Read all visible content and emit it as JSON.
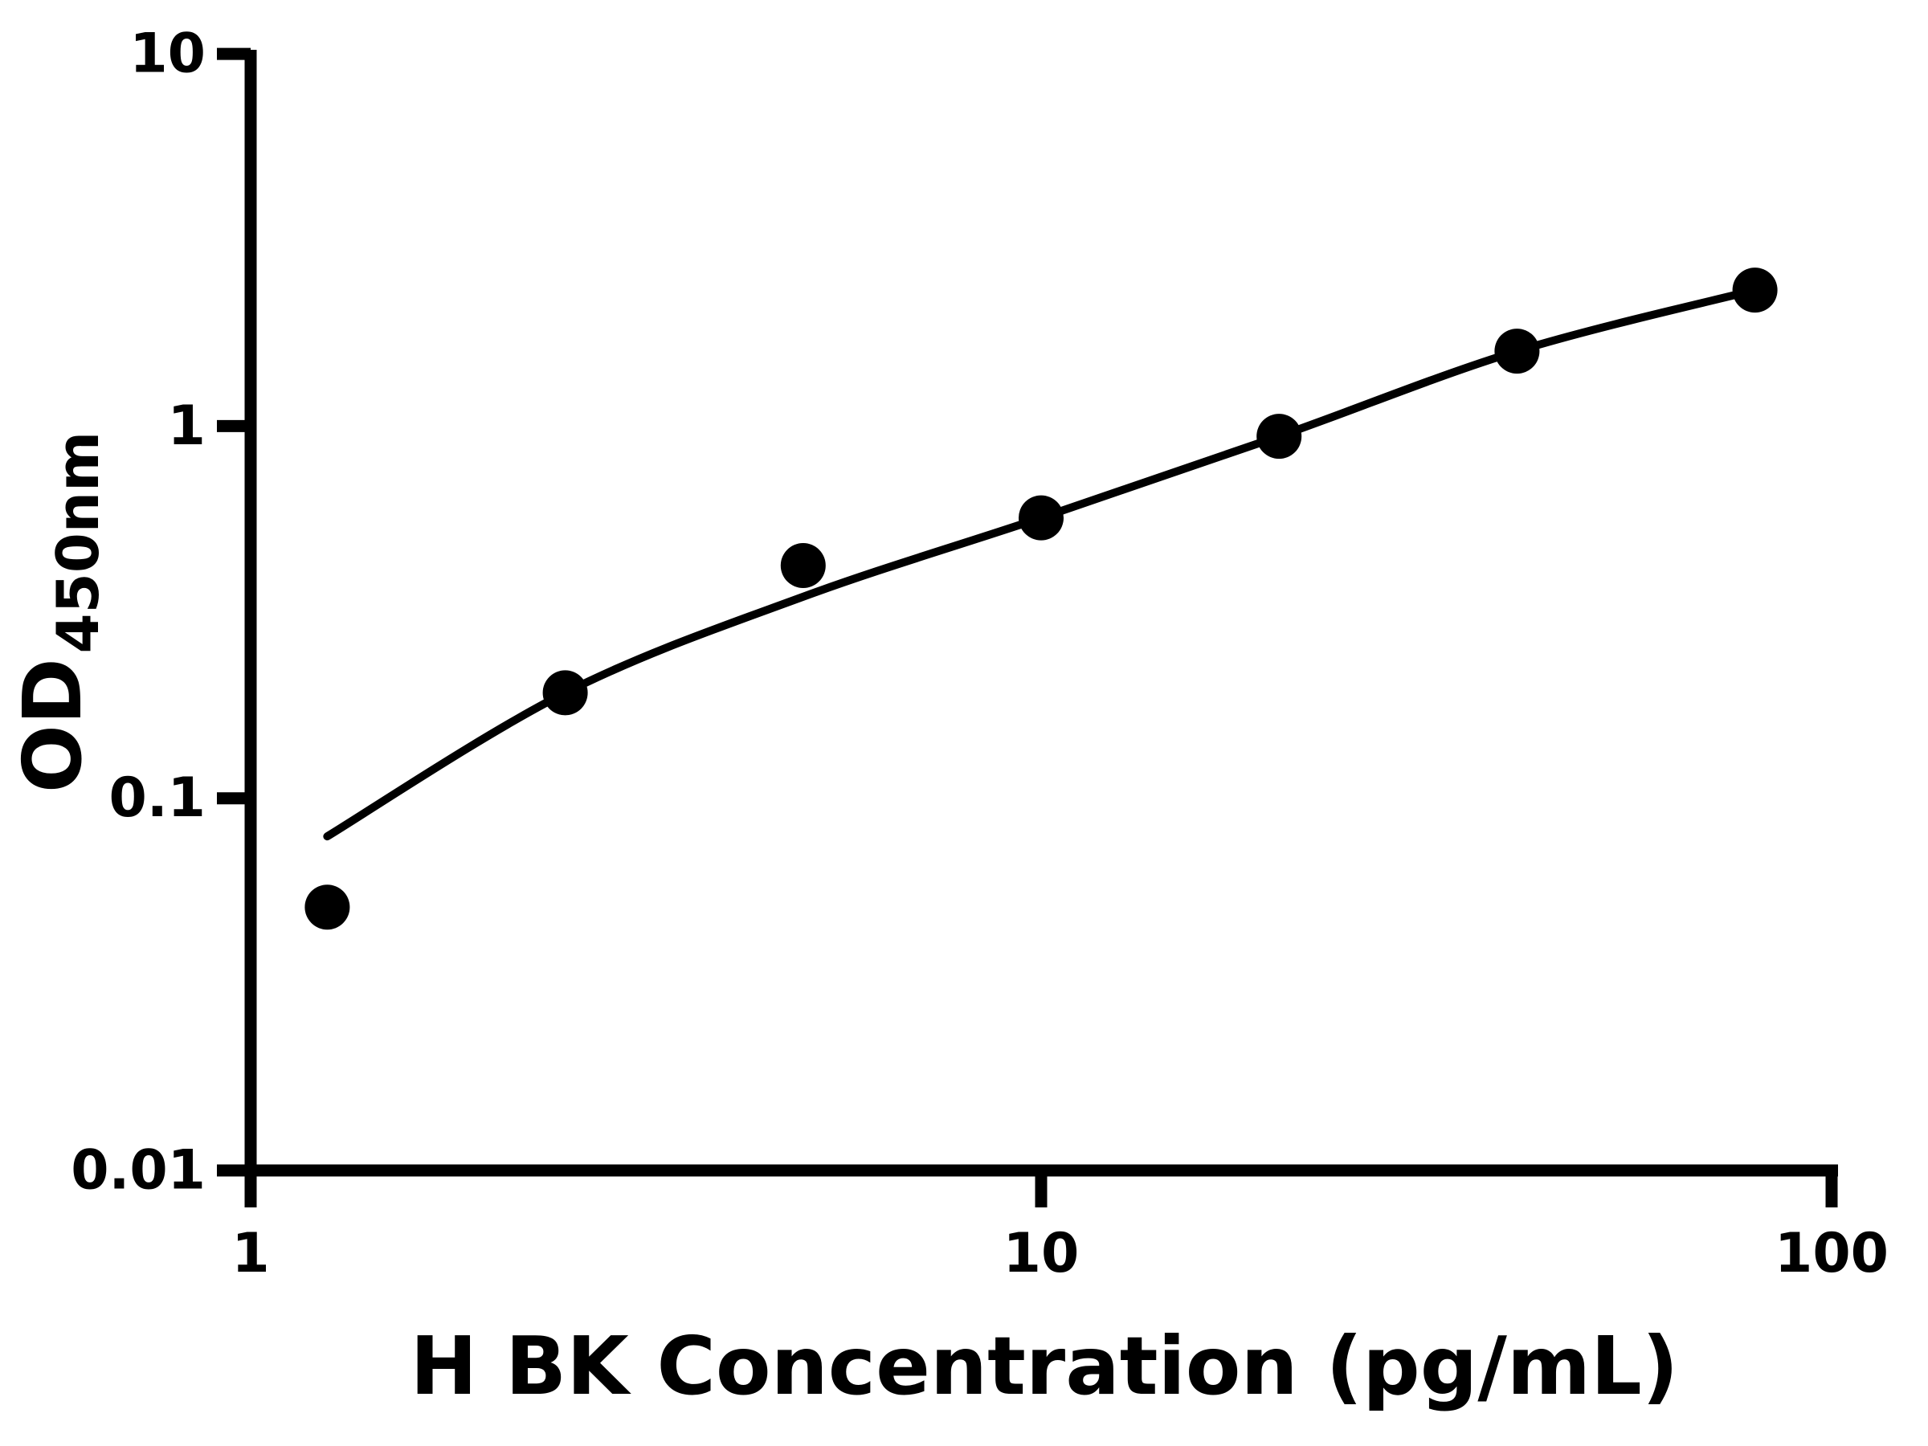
{
  "chart_data": {
    "type": "scatter",
    "title": "",
    "xlabel": "H BK Concentration (pg/mL)",
    "ylabel": "OD",
    "ylabel_subscript": "450nm",
    "x_scale": "log",
    "y_scale": "log",
    "xlim": [
      1,
      100
    ],
    "ylim": [
      0.01,
      10
    ],
    "x_ticks": [
      1,
      10,
      100
    ],
    "x_tick_labels": [
      "1",
      "10",
      "100"
    ],
    "y_ticks": [
      10,
      1,
      0.1,
      0.01
    ],
    "y_tick_labels": [
      "10",
      "1",
      "0.1",
      "0.01"
    ],
    "grid": false,
    "legend": "none",
    "series": [
      {
        "name": "standard-points",
        "type": "scatter",
        "marker": "filled-circle",
        "x": [
          1.25,
          2.5,
          5,
          10,
          20,
          40,
          80
        ],
        "y": [
          0.051,
          0.192,
          0.422,
          0.567,
          0.939,
          1.59,
          2.32
        ]
      },
      {
        "name": "fitted-curve",
        "type": "line",
        "x": [
          1.25,
          2.5,
          5,
          10,
          20,
          40,
          80
        ],
        "y": [
          0.079,
          0.192,
          0.348,
          0.567,
          0.939,
          1.59,
          2.32
        ]
      }
    ],
    "colors": {
      "points": "#000000",
      "curve": "#000000",
      "axis": "#000000",
      "background": "#ffffff"
    }
  }
}
